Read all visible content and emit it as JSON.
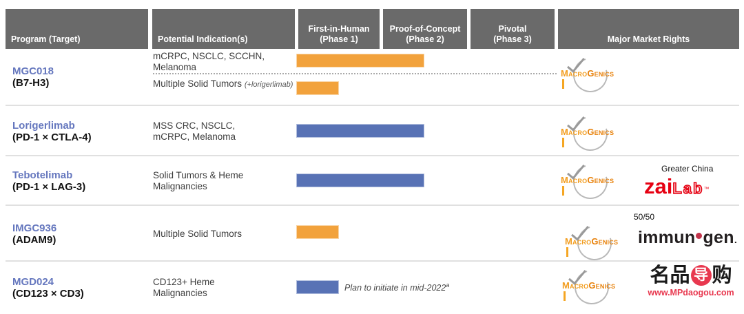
{
  "header": {
    "program": "Program (Target)",
    "indications": "Potential Indication(s)",
    "phase1": "First-in-Human\n(Phase 1)",
    "phase2": "Proof-of-Concept\n(Phase 2)",
    "phase3": "Pivotal\n(Phase 3)",
    "rights": "Major Market Rights"
  },
  "colors": {
    "header_bg": "#6a6a6a",
    "orange": "#f2a23c",
    "blue": "#5872b5",
    "program_text": "#6577be",
    "macrogenics_orange": "#f29d1f",
    "zai_red": "#e60012",
    "immunogen_dot": "#c2344b",
    "watermark_red": "#e8384f"
  },
  "rows": [
    {
      "program": "MGC018",
      "target": "(B7-H3)",
      "sub_rows": [
        {
          "indication": "mCRPC, NSCLC, SCCHN,\nMelanoma"
        },
        {
          "indication": "Multiple Solid Tumors",
          "note": "(+lorigerlimab)"
        }
      ],
      "rights": "MacroGenics"
    },
    {
      "program": "Lorigerlimab",
      "target": "(PD-1 × CTLA-4)",
      "indication": "MSS CRC, NSCLC,\nmCRPC, Melanoma",
      "rights": "MacroGenics"
    },
    {
      "program": "Tebotelimab",
      "target": "(PD-1 × LAG-3)",
      "indication": "Solid Tumors & Heme\nMalignancies",
      "region_note": "Greater China",
      "rights": "MacroGenics; Zai Lab (Greater China)"
    },
    {
      "program": "IMGC936",
      "target": "(ADAM9)",
      "indication": "Multiple Solid Tumors",
      "share_note": "50/50",
      "rights": "MacroGenics / ImmunoGen 50/50"
    },
    {
      "program": "MGD024",
      "target": "(CD123 × CD3)",
      "indication": "CD123+ Heme\nMalignancies",
      "bar_annotation": "Plan to initiate in mid-2022",
      "bar_annotation_sup": "a",
      "rights": "MacroGenics"
    }
  ],
  "logos": {
    "macrogenics": {
      "part1": "Macro",
      "part2": "Genics"
    },
    "zai": {
      "part1": "zai",
      "part2": "Lab",
      "tm": "™"
    },
    "immunogen": {
      "part1": "immun",
      "part2": "gen",
      "suffix": "."
    },
    "watermark": {
      "chars1": "名品",
      "char_red": "导",
      "char4": "购",
      "url": "www.MPdaogou.com"
    }
  },
  "chart_data": {
    "type": "bar",
    "orientation": "horizontal",
    "title": "Clinical pipeline phase progress",
    "categories_axis": [
      "First-in-Human (Phase 1)",
      "Proof-of-Concept (Phase 2)",
      "Pivotal (Phase 3)"
    ],
    "unit": "clinical phases spanned (scale 0-3)",
    "bars": [
      {
        "row": "MGC018 (B7-H3)",
        "label": "mCRPC, NSCLC, SCCHN, Melanoma",
        "phases_spanned": 1.5,
        "color": "orange"
      },
      {
        "row": "MGC018 (B7-H3)",
        "label": "Multiple Solid Tumors (+lorigerlimab)",
        "phases_spanned": 0.5,
        "color": "orange"
      },
      {
        "row": "Lorigerlimab (PD-1 × CTLA-4)",
        "label": "MSS CRC, NSCLC, mCRPC, Melanoma",
        "phases_spanned": 1.5,
        "color": "blue"
      },
      {
        "row": "Tebotelimab (PD-1 × LAG-3)",
        "label": "Solid Tumors & Heme Malignancies",
        "phases_spanned": 1.5,
        "color": "blue"
      },
      {
        "row": "IMGC936 (ADAM9)",
        "label": "Multiple Solid Tumors",
        "phases_spanned": 0.5,
        "color": "orange"
      },
      {
        "row": "MGD024 (CD123 × CD3)",
        "label": "CD123+ Heme Malignancies",
        "phases_spanned": 0.5,
        "color": "blue",
        "annotation": "Plan to initiate in mid-2022"
      }
    ]
  }
}
